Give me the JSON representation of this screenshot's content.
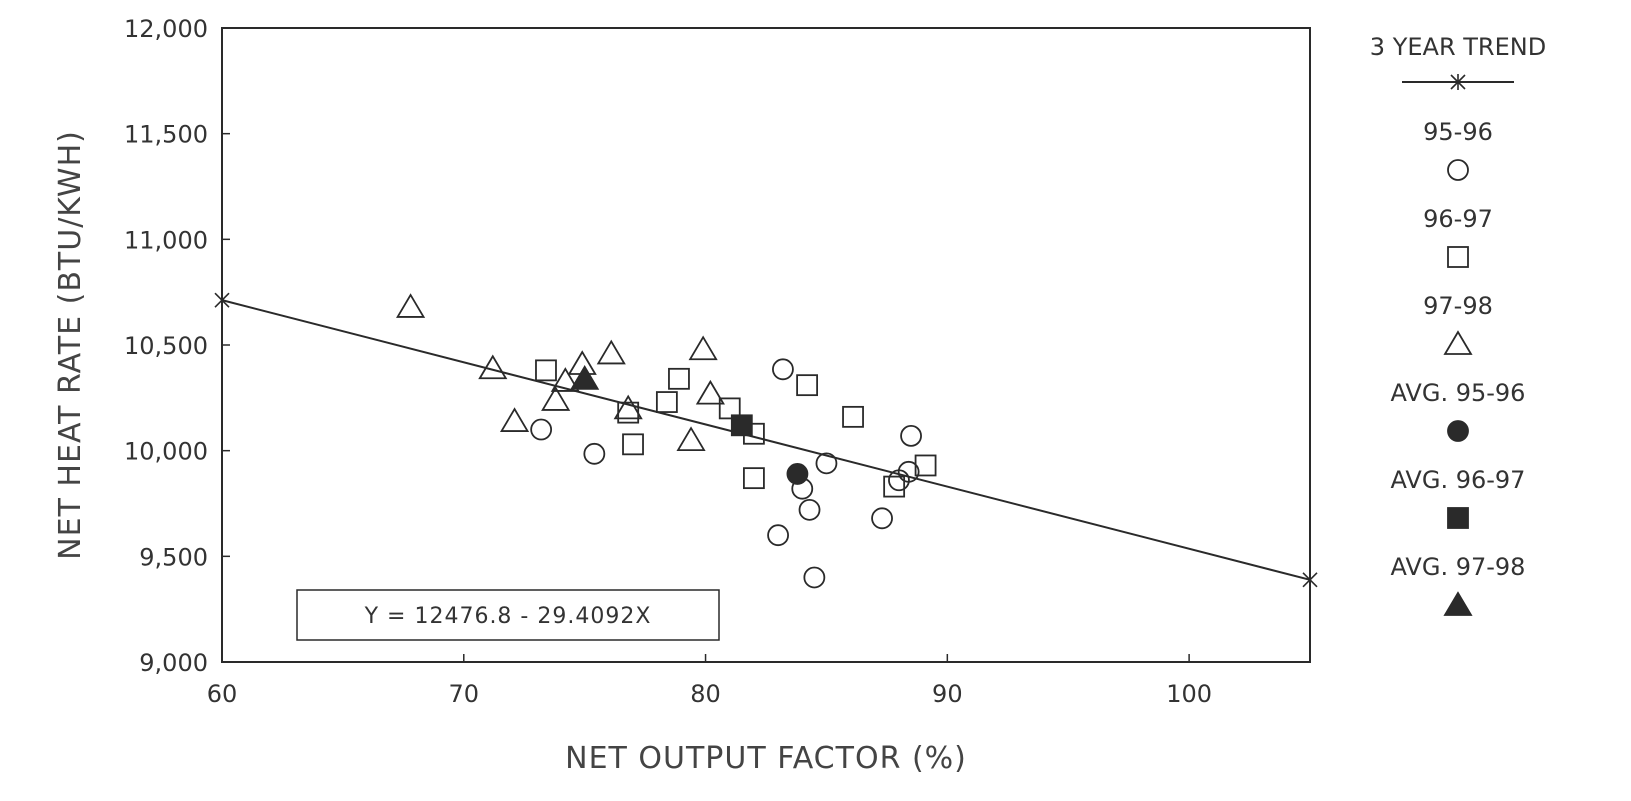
{
  "chart_data": {
    "type": "scatter",
    "xlabel": "NET OUTPUT FACTOR (%)",
    "ylabel": "NET HEAT RATE (BTU/KWH)",
    "xlim": [
      60,
      105
    ],
    "ylim": [
      9000,
      12000
    ],
    "x_ticks": [
      60,
      70,
      80,
      90,
      100
    ],
    "x_tick_labels": [
      "60",
      "70",
      "80",
      "90",
      "100"
    ],
    "y_ticks": [
      9000,
      9500,
      10000,
      10500,
      11000,
      11500,
      12000
    ],
    "y_tick_labels": [
      "9,000",
      "9,500",
      "10,000",
      "10,500",
      "11,000",
      "11,500",
      "12,000"
    ],
    "grid": false,
    "legend_position": "right, outside plot",
    "equation": "Y = 12476.8 - 29.4092X",
    "trend": {
      "name": "3 YEAR TREND",
      "intercept": 12476.8,
      "slope": -29.4092,
      "x_range": [
        60,
        105
      ]
    },
    "series": [
      {
        "name": "95-96",
        "marker": "circle-open",
        "points": [
          {
            "x": 73.2,
            "y": 10100
          },
          {
            "x": 75.4,
            "y": 9985
          },
          {
            "x": 83.2,
            "y": 10385
          },
          {
            "x": 84.0,
            "y": 9820
          },
          {
            "x": 84.3,
            "y": 9720
          },
          {
            "x": 83.0,
            "y": 9600
          },
          {
            "x": 84.5,
            "y": 9400
          },
          {
            "x": 85.0,
            "y": 9940
          },
          {
            "x": 87.3,
            "y": 9680
          },
          {
            "x": 88.0,
            "y": 9860
          },
          {
            "x": 88.4,
            "y": 9900
          },
          {
            "x": 88.5,
            "y": 10070
          }
        ]
      },
      {
        "name": "96-97",
        "marker": "square-open",
        "points": [
          {
            "x": 73.4,
            "y": 10380
          },
          {
            "x": 76.8,
            "y": 10180
          },
          {
            "x": 77.0,
            "y": 10030
          },
          {
            "x": 78.4,
            "y": 10230
          },
          {
            "x": 78.9,
            "y": 10340
          },
          {
            "x": 81.0,
            "y": 10200
          },
          {
            "x": 82.0,
            "y": 10080
          },
          {
            "x": 82.0,
            "y": 9870
          },
          {
            "x": 84.2,
            "y": 10310
          },
          {
            "x": 86.1,
            "y": 10160
          },
          {
            "x": 87.8,
            "y": 9830
          },
          {
            "x": 89.1,
            "y": 9930
          }
        ]
      },
      {
        "name": "97-98",
        "marker": "triangle-open",
        "points": [
          {
            "x": 67.8,
            "y": 10680
          },
          {
            "x": 71.2,
            "y": 10390
          },
          {
            "x": 72.1,
            "y": 10140
          },
          {
            "x": 73.8,
            "y": 10240
          },
          {
            "x": 74.2,
            "y": 10330
          },
          {
            "x": 74.9,
            "y": 10410
          },
          {
            "x": 76.1,
            "y": 10460
          },
          {
            "x": 76.8,
            "y": 10200
          },
          {
            "x": 79.4,
            "y": 10050
          },
          {
            "x": 79.9,
            "y": 10480
          },
          {
            "x": 80.2,
            "y": 10270
          }
        ]
      },
      {
        "name": "AVG. 95-96",
        "marker": "circle-filled",
        "points": [
          {
            "x": 83.8,
            "y": 9890
          }
        ]
      },
      {
        "name": "AVG. 96-97",
        "marker": "square-filled",
        "points": [
          {
            "x": 81.5,
            "y": 10120
          }
        ]
      },
      {
        "name": "AVG. 97-98",
        "marker": "triangle-filled",
        "points": [
          {
            "x": 75.0,
            "y": 10340
          }
        ]
      }
    ],
    "colors": {
      "ink": "#2a2a2a",
      "background": "#ffffff"
    }
  }
}
